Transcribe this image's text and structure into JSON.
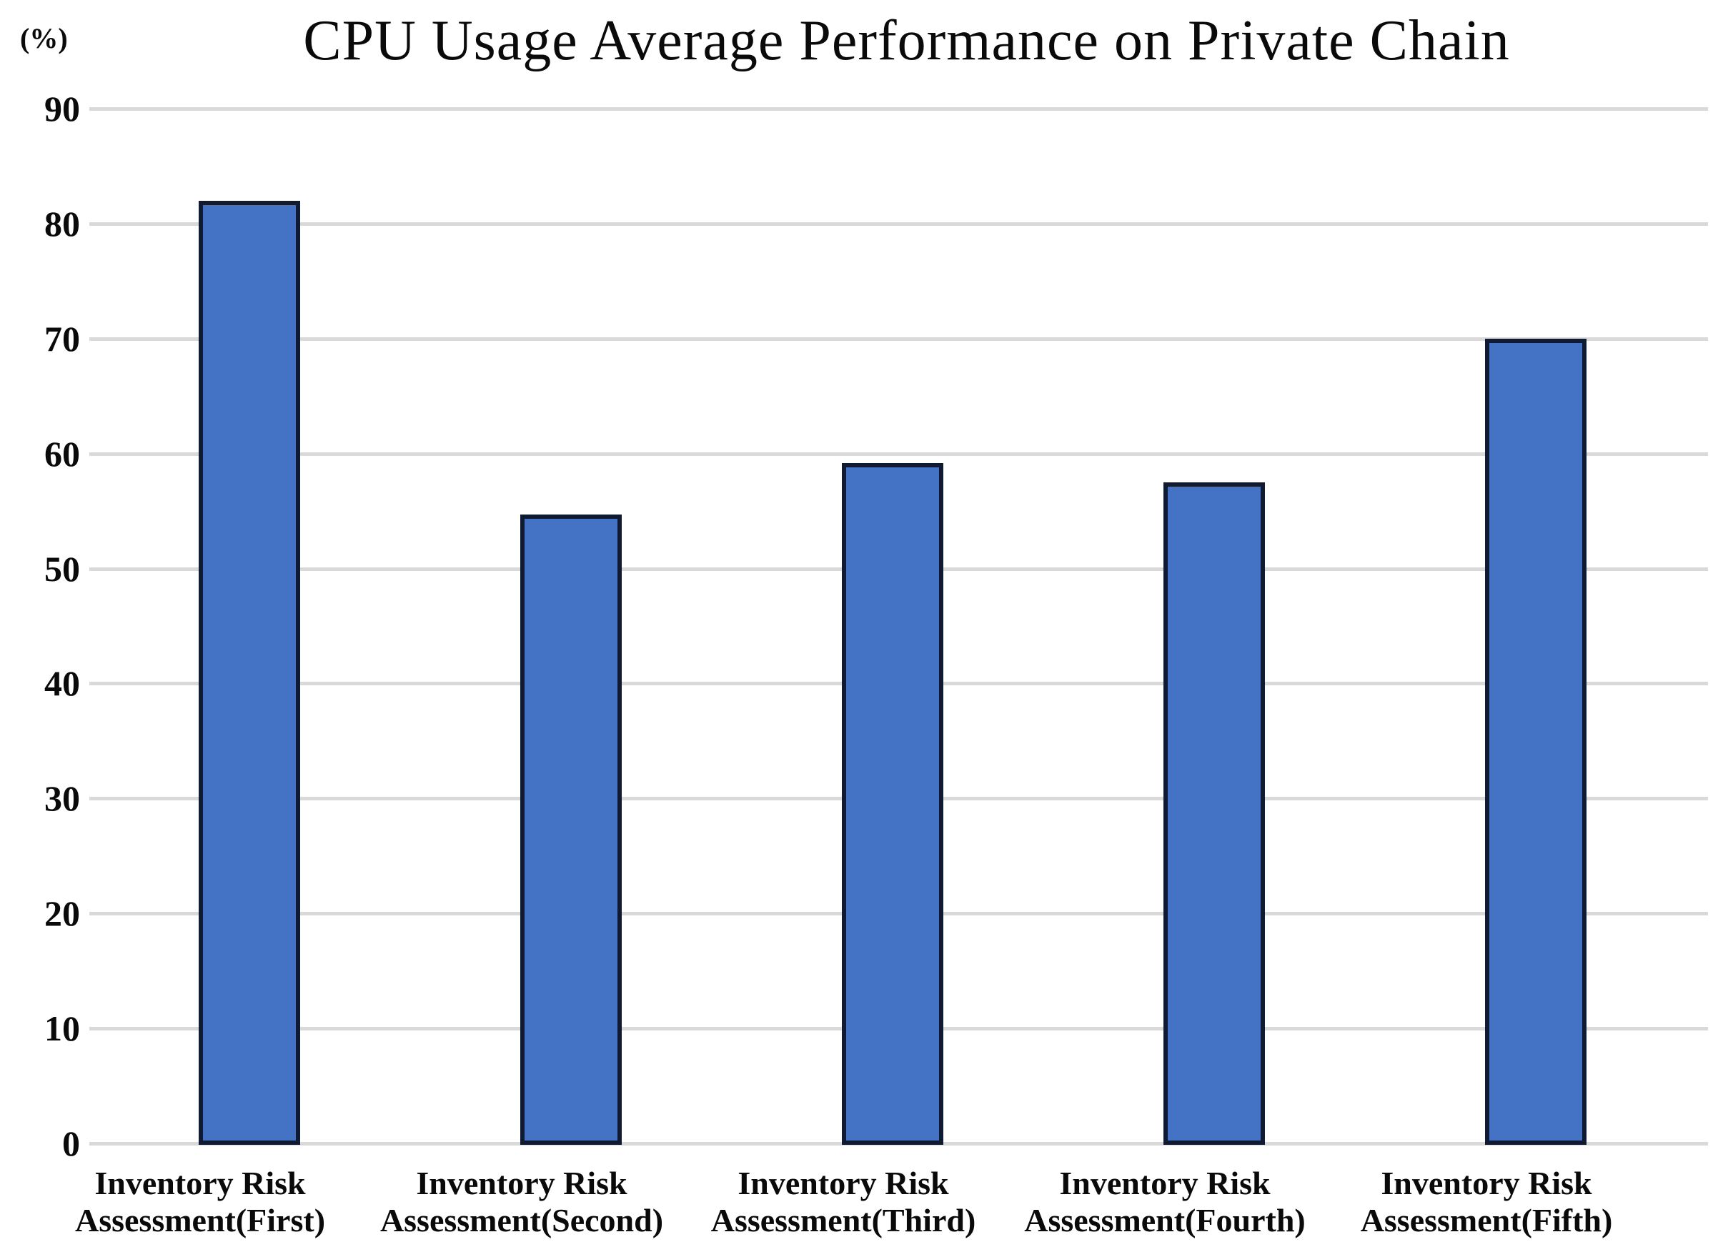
{
  "chart_data": {
    "type": "bar",
    "title": "CPU Usage Average Performance on Private Chain",
    "y_unit_label": "(%)",
    "xlabel": "",
    "ylabel": "(%)",
    "ylim": [
      0,
      90
    ],
    "yticks": [
      0,
      10,
      20,
      30,
      40,
      50,
      60,
      70,
      80,
      90
    ],
    "grid": "horizontal",
    "legend": "none",
    "categories": [
      {
        "full": "Inventory Risk Assessment(First)",
        "line1": "Inventory Risk",
        "line2": "Assessment(First)"
      },
      {
        "full": "Inventory Risk Assessment(Second)",
        "line1": "Inventory Risk",
        "line2": "Assessment(Second)"
      },
      {
        "full": "Inventory Risk Assessment(Third)",
        "line1": "Inventory Risk",
        "line2": "Assessment(Third)"
      },
      {
        "full": "Inventory Risk Assessment(Fourth)",
        "line1": "Inventory Risk",
        "line2": "Assessment(Fourth)"
      },
      {
        "full": "Inventory Risk Assessment(Fifth)",
        "line1": "Inventory Risk",
        "line2": "Assessment(Fifth)"
      }
    ],
    "values": [
      82,
      54.7,
      59.2,
      57.5,
      70
    ],
    "colors": {
      "bar_fill": "#4472C4",
      "bar_border": "#0F1B33",
      "gridline": "#D9D9D9",
      "text": "#0A0A0A",
      "background": "#FFFFFF"
    }
  }
}
